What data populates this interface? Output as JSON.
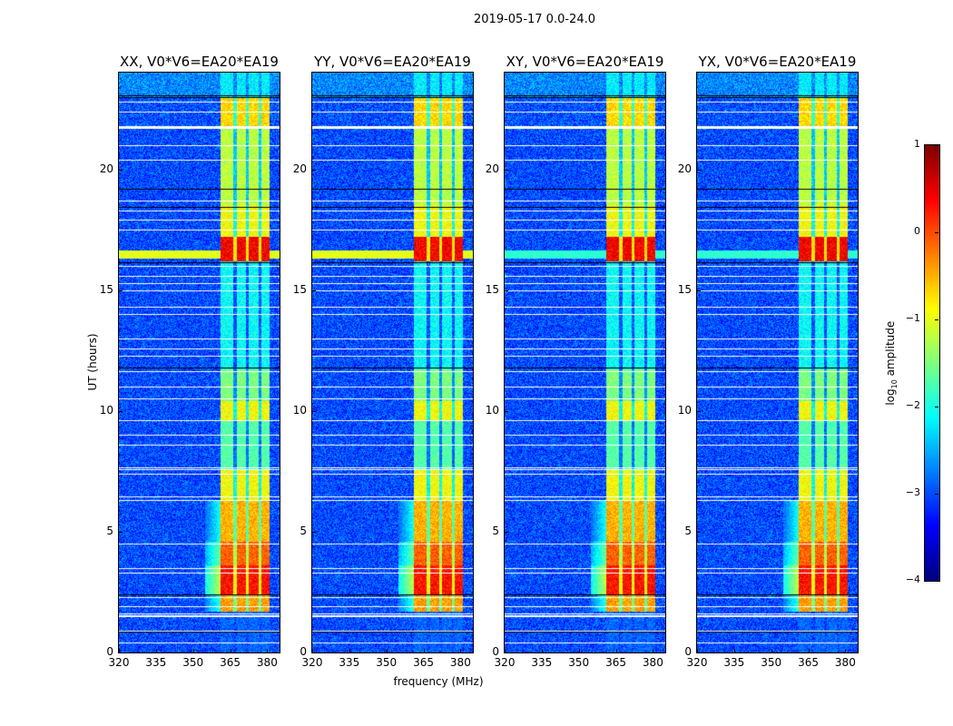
{
  "chart_data": {
    "type": "heatmap",
    "title": "2019-05-17 0.0-24.0",
    "panels": [
      {
        "title": "XX, V0*V6=EA20*EA19",
        "full_band_flare": true
      },
      {
        "title": "YY, V0*V6=EA20*EA19",
        "full_band_flare": true
      },
      {
        "title": "XY, V0*V6=EA20*EA19",
        "full_band_flare": false
      },
      {
        "title": "YX, V0*V6=EA20*EA19",
        "full_band_flare": false
      }
    ],
    "xlabel": "frequency (MHz)",
    "ylabel": "UT (hours)",
    "xlim": [
      320,
      385
    ],
    "ylim": [
      0,
      24
    ],
    "xticks": [
      "320",
      "335",
      "350",
      "365",
      "380"
    ],
    "xtick_values": [
      320,
      335,
      350,
      365,
      380
    ],
    "yticks": [
      "0",
      "5",
      "10",
      "15",
      "20"
    ],
    "ytick_values": [
      0,
      5,
      10,
      15,
      20
    ],
    "colorbar": {
      "label": "log",
      "label_sub": "10",
      "label_suffix": " amplitude",
      "range": [
        -4,
        1
      ],
      "colormap": "jet",
      "ticks": [
        "1",
        "0",
        "−1",
        "−2",
        "−3",
        "−4"
      ],
      "tick_values": [
        1,
        0,
        -1,
        -2,
        -3,
        -4
      ]
    },
    "background_level": -3.0,
    "rfi_band_mhz": [
      361,
      381
    ],
    "rfi_band_gaps_mhz": [
      367,
      372,
      377
    ],
    "rfi_band_levels": [
      {
        "from": 0.0,
        "to": 1.7,
        "level": -3.0
      },
      {
        "from": 1.7,
        "to": 2.4,
        "level": -0.4
      },
      {
        "from": 2.4,
        "to": 3.6,
        "level": 0.3
      },
      {
        "from": 3.6,
        "to": 4.6,
        "level": -0.1
      },
      {
        "from": 4.6,
        "to": 6.3,
        "level": -0.5
      },
      {
        "from": 6.3,
        "to": 7.6,
        "level": -0.9
      },
      {
        "from": 7.6,
        "to": 9.6,
        "level": -1.7
      },
      {
        "from": 9.6,
        "to": 10.4,
        "level": -0.9
      },
      {
        "from": 10.4,
        "to": 11.7,
        "level": -1.5
      },
      {
        "from": 11.7,
        "to": 16.2,
        "level": -2.1
      },
      {
        "from": 16.2,
        "to": 17.2,
        "level": 0.4
      },
      {
        "from": 17.2,
        "to": 18.5,
        "level": -0.9
      },
      {
        "from": 18.5,
        "to": 21.7,
        "level": -1.2
      },
      {
        "from": 21.7,
        "to": 23.0,
        "level": -0.7
      },
      {
        "from": 23.0,
        "to": 24.0,
        "level": -2.2
      }
    ],
    "flagged_hours_white": [
      0.4,
      0.9,
      1.5,
      1.55,
      1.6,
      1.9,
      2.3,
      3.3,
      3.5,
      4.5,
      6.3,
      6.45,
      7.4,
      7.6,
      7.65,
      8.6,
      9.0,
      9.6,
      10.5,
      11.0,
      11.65,
      12.3,
      12.6,
      13.0,
      14.0,
      14.3,
      15.0,
      15.3,
      15.6,
      16.0,
      17.5,
      17.9,
      18.3,
      18.7,
      20.4,
      21.0,
      21.7,
      21.75,
      21.8,
      22.4,
      22.8
    ],
    "flagged_hours_black": [
      0.85,
      2.4,
      11.8,
      16.15,
      18.45,
      19.2,
      23.0,
      23.05
    ]
  }
}
